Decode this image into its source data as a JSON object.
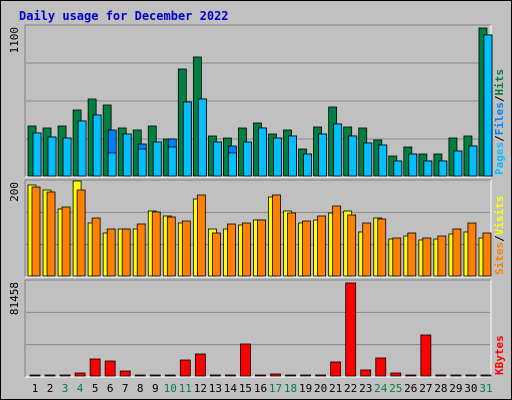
{
  "title": "Daily usage for December 2022",
  "colors": {
    "background": "#c0c0c0",
    "title": "#0000cc",
    "hits": "#008040",
    "files": "#0080ff",
    "pages": "#00c0ff",
    "visits": "#ffff00",
    "sites": "#ff8000",
    "kbytes": "#ff0000",
    "weekend_label": "#008040"
  },
  "chart_data": [
    {
      "type": "bar",
      "panel": "hits-files-pages",
      "ymax_label": "1100",
      "ylim": [
        0,
        1100
      ],
      "side_labels": [
        "Pages",
        "Files",
        "Hits"
      ],
      "categories": [
        "1",
        "2",
        "3",
        "4",
        "5",
        "6",
        "7",
        "8",
        "9",
        "10",
        "11",
        "12",
        "13",
        "14",
        "15",
        "16",
        "17",
        "18",
        "19",
        "20",
        "21",
        "22",
        "23",
        "24",
        "25",
        "26",
        "27",
        "28",
        "29",
        "30",
        "31"
      ],
      "series": [
        {
          "name": "Hits",
          "values": [
            370,
            355,
            370,
            490,
            570,
            530,
            355,
            345,
            370,
            275,
            795,
            885,
            300,
            285,
            355,
            395,
            315,
            345,
            200,
            365,
            510,
            365,
            360,
            270,
            150,
            215,
            165,
            160,
            280,
            300,
            1100
          ]
        },
        {
          "name": "Files",
          "values": [
            320,
            290,
            280,
            410,
            450,
            345,
            310,
            235,
            255,
            275,
            550,
            570,
            250,
            220,
            255,
            360,
            285,
            300,
            160,
            315,
            390,
            300,
            245,
            230,
            115,
            165,
            115,
            115,
            185,
            225,
            1045
          ]
        },
        {
          "name": "Pages",
          "values": [
            320,
            290,
            280,
            410,
            450,
            170,
            310,
            200,
            255,
            215,
            550,
            570,
            250,
            170,
            255,
            360,
            285,
            300,
            160,
            315,
            390,
            300,
            245,
            230,
            115,
            165,
            115,
            115,
            185,
            225,
            1045
          ]
        }
      ]
    },
    {
      "type": "bar",
      "panel": "visits-sites",
      "ymax_label": "200",
      "ylim": [
        0,
        200
      ],
      "side_labels": [
        "Sites",
        "Visits"
      ],
      "categories": [
        "1",
        "2",
        "3",
        "4",
        "5",
        "6",
        "7",
        "8",
        "9",
        "10",
        "11",
        "12",
        "13",
        "14",
        "15",
        "16",
        "17",
        "18",
        "19",
        "20",
        "21",
        "22",
        "23",
        "24",
        "25",
        "26",
        "27",
        "28",
        "29",
        "30",
        "31"
      ],
      "series": [
        {
          "name": "Visits",
          "values": [
            195,
            185,
            145,
            205,
            115,
            92,
            100,
            100,
            140,
            130,
            115,
            165,
            100,
            102,
            110,
            120,
            170,
            140,
            115,
            120,
            135,
            140,
            95,
            125,
            80,
            85,
            77,
            80,
            90,
            95,
            82
          ]
        },
        {
          "name": "Sites",
          "values": [
            192,
            180,
            148,
            185,
            125,
            100,
            102,
            112,
            138,
            127,
            118,
            175,
            92,
            112,
            115,
            120,
            175,
            135,
            118,
            128,
            150,
            132,
            115,
            122,
            82,
            92,
            82,
            85,
            100,
            115,
            92
          ]
        }
      ]
    },
    {
      "type": "bar",
      "panel": "kbytes",
      "ymax_label": "81458",
      "ylim": [
        0,
        81458
      ],
      "side_labels": [
        "KBytes"
      ],
      "categories": [
        "1",
        "2",
        "3",
        "4",
        "5",
        "6",
        "7",
        "8",
        "9",
        "10",
        "11",
        "12",
        "13",
        "14",
        "15",
        "16",
        "17",
        "18",
        "19",
        "20",
        "21",
        "22",
        "23",
        "24",
        "25",
        "26",
        "27",
        "28",
        "29",
        "30",
        "31"
      ],
      "series": [
        {
          "name": "KBytes",
          "values": [
            0,
            0,
            0,
            3000,
            15000,
            13000,
            4000,
            0,
            0,
            0,
            14000,
            19000,
            0,
            0,
            28000,
            0,
            2000,
            0,
            0,
            0,
            12000,
            81458,
            5000,
            16000,
            3000,
            0,
            36000,
            0,
            0,
            0,
            0
          ]
        }
      ]
    }
  ],
  "x_axis": {
    "labels": [
      "1",
      "2",
      "3",
      "4",
      "5",
      "6",
      "7",
      "8",
      "9",
      "10",
      "11",
      "12",
      "13",
      "14",
      "15",
      "16",
      "17",
      "18",
      "19",
      "20",
      "21",
      "22",
      "23",
      "24",
      "25",
      "26",
      "27",
      "28",
      "29",
      "30",
      "31"
    ],
    "weekend_days": [
      3,
      4,
      10,
      11,
      17,
      18,
      24,
      25,
      31
    ]
  }
}
